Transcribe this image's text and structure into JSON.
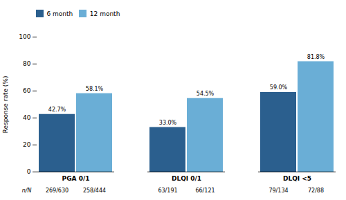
{
  "chart_data": {
    "type": "bar",
    "categories": [
      "PGA 0/1",
      "DLQI 0/1",
      "DLQI <5"
    ],
    "ylabel": "Response rate (%)",
    "ylim": [
      0,
      100
    ],
    "yticks": [
      0,
      20,
      40,
      60,
      80,
      100
    ],
    "grid": false,
    "legend": "upper left",
    "data_labels": true,
    "n_label_heading": "n/N",
    "series": [
      {
        "name": "6 month",
        "color": "#2b5f8e",
        "values": [
          42.7,
          33.0,
          59.0
        ],
        "value_labels": [
          "42.7%",
          "33.0%",
          "59.0%"
        ],
        "n_labels": [
          "269/630",
          "63/191",
          "79/134"
        ]
      },
      {
        "name": "12 month",
        "color": "#6aaed6",
        "values": [
          58.1,
          54.5,
          81.8
        ],
        "value_labels": [
          "58.1%",
          "54.5%",
          "81.8%"
        ],
        "n_labels": [
          "258/444",
          "66/121",
          "72/88"
        ]
      }
    ]
  }
}
